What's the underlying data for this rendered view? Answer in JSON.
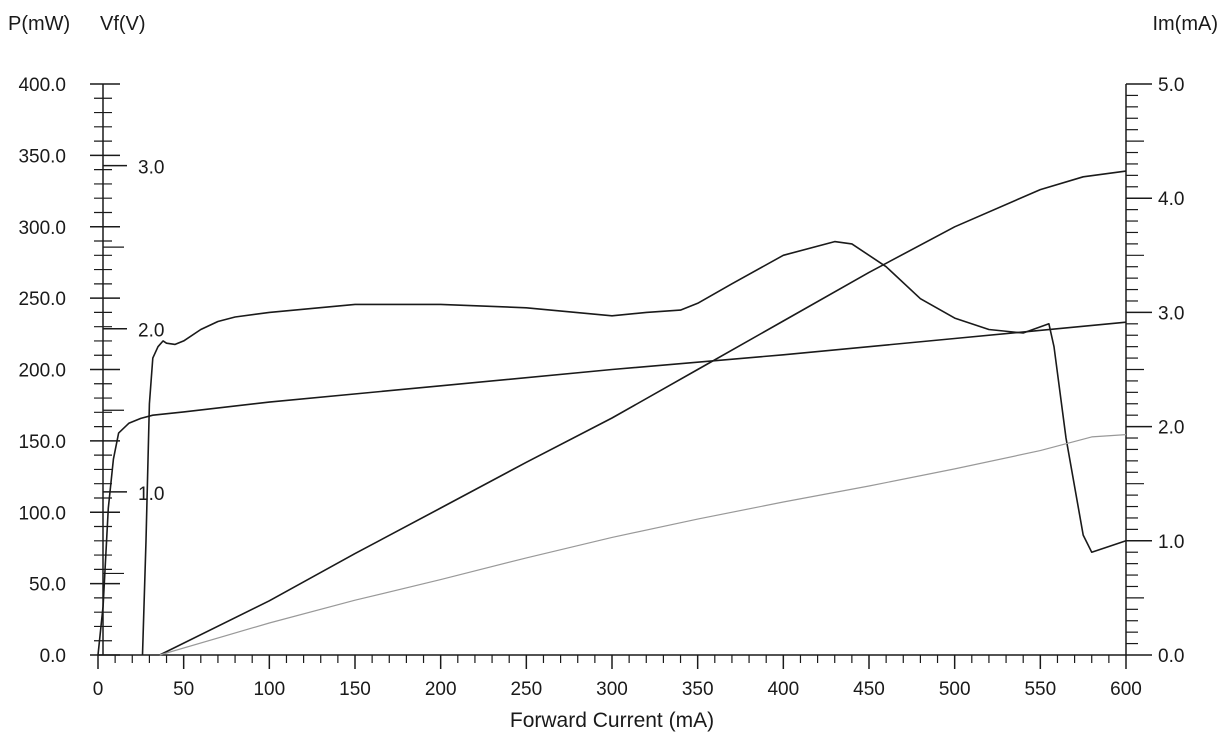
{
  "chart_data": {
    "type": "line",
    "xlabel": "Forward Current (mA)",
    "xlim": [
      0,
      600
    ],
    "x_ticks": [
      "0",
      "50",
      "100",
      "150",
      "200",
      "250",
      "300",
      "350",
      "400",
      "450",
      "500",
      "550",
      "600"
    ],
    "axes": {
      "power": {
        "title": "P(mW)",
        "ylim": [
          0,
          400
        ],
        "ticks": [
          "0.0",
          "50.0",
          "100.0",
          "150.0",
          "200.0",
          "250.0",
          "300.0",
          "350.0",
          "400.0"
        ]
      },
      "voltage": {
        "title": "Vf(V)",
        "ylim": [
          0,
          3.5
        ],
        "ticks": [
          "1.0",
          "2.0",
          "3.0"
        ]
      },
      "monitor": {
        "title": "Im(mA)",
        "ylim": [
          0,
          5
        ],
        "ticks": [
          "0.0",
          "1.0",
          "2.0",
          "3.0",
          "4.0",
          "5.0"
        ]
      }
    },
    "series": [
      {
        "axis": "power",
        "color": "#1a1a1a",
        "x": [
          36,
          100,
          150,
          200,
          250,
          300,
          350,
          400,
          450,
          500,
          550,
          575,
          600
        ],
        "y": [
          0,
          38,
          71,
          103,
          135,
          166,
          200,
          234,
          268,
          300,
          326,
          335,
          339
        ]
      },
      {
        "axis": "voltage",
        "color": "#1a1a1a",
        "x": [
          0,
          3,
          6,
          9,
          12,
          18,
          25,
          32,
          50,
          100,
          200,
          300,
          400,
          500,
          600
        ],
        "y": [
          0,
          0.3,
          0.9,
          1.2,
          1.36,
          1.42,
          1.45,
          1.47,
          1.49,
          1.55,
          1.65,
          1.75,
          1.84,
          1.94,
          2.04
        ]
      },
      {
        "axis": "monitor",
        "color": "#1a1a1a",
        "x": [
          26,
          28,
          30,
          32,
          35,
          38,
          40,
          45,
          50,
          60,
          70,
          80,
          100,
          150,
          200,
          250,
          300,
          320,
          340,
          350,
          370,
          400,
          430,
          440,
          460,
          480,
          500,
          520,
          540,
          555,
          558,
          565,
          575,
          580,
          590,
          600
        ],
        "y": [
          0,
          1.0,
          2.2,
          2.6,
          2.7,
          2.75,
          2.73,
          2.72,
          2.75,
          2.85,
          2.92,
          2.96,
          3.0,
          3.07,
          3.07,
          3.04,
          2.97,
          3.0,
          3.02,
          3.08,
          3.25,
          3.5,
          3.62,
          3.6,
          3.4,
          3.12,
          2.95,
          2.85,
          2.82,
          2.9,
          2.7,
          1.9,
          1.05,
          0.9,
          0.95,
          1.0
        ]
      },
      {
        "axis": "monitor",
        "color": "#999999",
        "x": [
          36,
          100,
          150,
          200,
          250,
          300,
          350,
          400,
          450,
          500,
          550,
          580,
          600
        ],
        "y": [
          0,
          0.28,
          0.48,
          0.66,
          0.85,
          1.03,
          1.19,
          1.34,
          1.48,
          1.63,
          1.79,
          1.91,
          1.93
        ]
      }
    ]
  }
}
